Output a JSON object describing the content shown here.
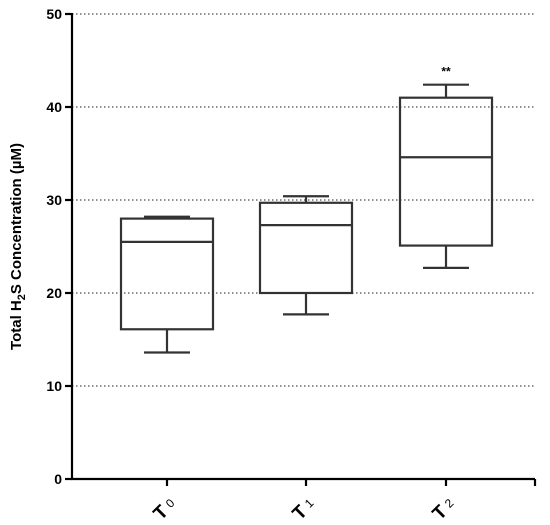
{
  "chart_data": {
    "type": "box",
    "ylabel": {
      "text_before": "Total H",
      "subscript": "2",
      "text_after": "S Concentration (µM)"
    },
    "ylim": [
      0,
      50
    ],
    "yticks": [
      0,
      10,
      20,
      30,
      40,
      50
    ],
    "grid": "horizontal-dotted",
    "categories": [
      {
        "main": "T",
        "sub": "0"
      },
      {
        "main": "T",
        "sub": "1"
      },
      {
        "main": "T",
        "sub": "2"
      }
    ],
    "boxes": [
      {
        "min": 13.6,
        "q1": 16.1,
        "median": 25.5,
        "q3": 28.0,
        "max": 28.2,
        "annotation": ""
      },
      {
        "min": 17.7,
        "q1": 20.0,
        "median": 27.3,
        "q3": 29.7,
        "max": 30.4,
        "annotation": ""
      },
      {
        "min": 22.7,
        "q1": 25.1,
        "median": 34.6,
        "q3": 41.0,
        "max": 42.4,
        "annotation": "**"
      }
    ]
  }
}
